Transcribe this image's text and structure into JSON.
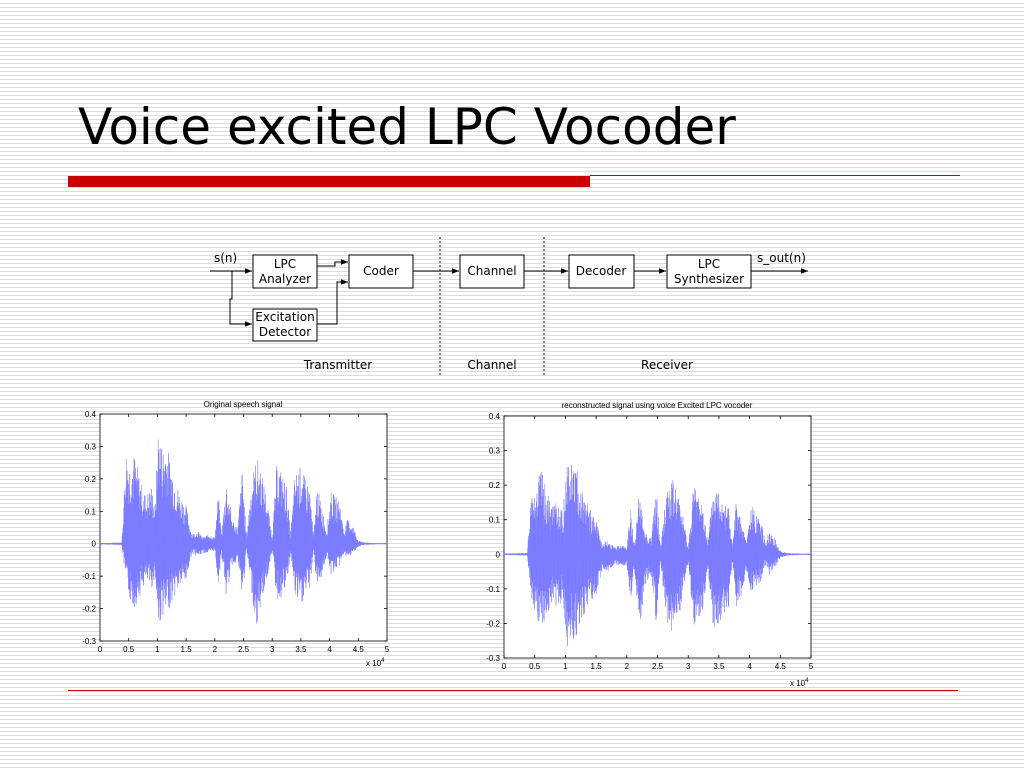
{
  "slide": {
    "title": "Voice excited LPC Vocoder",
    "accent_color": "#cc0000"
  },
  "diagram": {
    "input_label": "s(n)",
    "output_label": "s_out(n)",
    "blocks": {
      "lpc_analyzer": [
        "LPC",
        "Analyzer"
      ],
      "excitation_detector": [
        "Excitation",
        "Detector"
      ],
      "coder": "Coder",
      "channel": "Channel",
      "decoder": "Decoder",
      "lpc_synthesizer": [
        "LPC",
        "Synthesizer"
      ]
    },
    "sections": {
      "transmitter": "Transmitter",
      "channel": "Channel",
      "receiver": "Receiver"
    }
  },
  "chart_data": [
    {
      "type": "line",
      "title": "Original speech signal",
      "xlim": [
        0,
        50000
      ],
      "ylim": [
        -0.3,
        0.4
      ],
      "x_ticks": [
        "0",
        "0.5",
        "1",
        "1.5",
        "2",
        "2.5",
        "3",
        "3.5",
        "4",
        "4.5",
        "5"
      ],
      "y_ticks": [
        "0.4",
        "0.3",
        "0.2",
        "0.1",
        "0",
        "-0.1",
        "-0.2",
        "-0.3"
      ],
      "x_multiplier": "x 10",
      "x_multiplier_exp": "4",
      "series_color": "#7b7bff",
      "envelope": {
        "x": [
          0,
          3800,
          4500,
          5200,
          6000,
          7000,
          8000,
          9000,
          9600,
          10200,
          10800,
          11500,
          12500,
          13200,
          14000,
          15000,
          16000,
          17000,
          18000,
          19000,
          20000,
          20600,
          21200,
          22000,
          23000,
          24000,
          24800,
          25500,
          26500,
          27300,
          28000,
          29000,
          30000,
          30800,
          31500,
          32500,
          33200,
          34000,
          35000,
          35800,
          36600,
          37200,
          37800,
          38600,
          39500,
          40200,
          41000,
          41800,
          42500,
          43200,
          44000,
          45000,
          46000,
          48000,
          50000
        ],
        "max": [
          0.002,
          0.004,
          0.3,
          0.25,
          0.28,
          0.2,
          0.15,
          0.18,
          0.12,
          0.38,
          0.3,
          0.32,
          0.24,
          0.2,
          0.15,
          0.12,
          0.03,
          0.04,
          0.02,
          0.03,
          0.02,
          0.16,
          0.03,
          0.2,
          0.08,
          0.05,
          0.24,
          0.02,
          0.21,
          0.27,
          0.24,
          0.15,
          0.02,
          0.25,
          0.23,
          0.18,
          0.03,
          0.22,
          0.24,
          0.2,
          0.17,
          0.02,
          0.18,
          0.12,
          0.04,
          0.16,
          0.15,
          0.13,
          0.04,
          0.08,
          0.06,
          0.01,
          0.004,
          0.002,
          0.002
        ],
        "min": [
          -0.002,
          -0.004,
          -0.12,
          -0.18,
          -0.2,
          -0.16,
          -0.12,
          -0.14,
          -0.1,
          -0.27,
          -0.22,
          -0.23,
          -0.18,
          -0.16,
          -0.13,
          -0.12,
          -0.03,
          -0.04,
          -0.03,
          -0.03,
          -0.02,
          -0.13,
          -0.03,
          -0.17,
          -0.07,
          -0.05,
          -0.18,
          -0.02,
          -0.16,
          -0.27,
          -0.19,
          -0.12,
          -0.02,
          -0.18,
          -0.17,
          -0.14,
          -0.03,
          -0.17,
          -0.2,
          -0.16,
          -0.14,
          -0.02,
          -0.14,
          -0.1,
          -0.04,
          -0.1,
          -0.08,
          -0.07,
          -0.03,
          -0.05,
          -0.03,
          -0.01,
          -0.004,
          -0.002,
          -0.002
        ]
      }
    },
    {
      "type": "line",
      "title": "reconstructed signal using voice Excited LPC vocoder",
      "xlim": [
        0,
        50000
      ],
      "ylim": [
        -0.3,
        0.4
      ],
      "x_ticks": [
        "0",
        "0.5",
        "1",
        "1.5",
        "2",
        "2.5",
        "3",
        "3.5",
        "4",
        "4.5",
        "5"
      ],
      "y_ticks": [
        "0.4",
        "0.3",
        "0.2",
        "0.1",
        "0",
        "-0.1",
        "-0.2",
        "-0.3"
      ],
      "x_multiplier": "x 10",
      "x_multiplier_exp": "4",
      "series_color": "#7b7bff",
      "envelope": {
        "x": [
          0,
          3800,
          4500,
          5200,
          6000,
          7000,
          8000,
          9000,
          9600,
          10200,
          10800,
          11500,
          12500,
          13200,
          14000,
          15000,
          16000,
          17000,
          18000,
          19000,
          20000,
          20600,
          21200,
          22000,
          23000,
          24000,
          24800,
          25500,
          26500,
          27300,
          28000,
          29000,
          30000,
          30800,
          31500,
          32500,
          33200,
          34000,
          35000,
          35800,
          36600,
          37200,
          37800,
          38600,
          39500,
          40200,
          41000,
          41800,
          42500,
          43200,
          44000,
          45000,
          46000,
          48000,
          50000
        ],
        "max": [
          0.002,
          0.004,
          0.22,
          0.2,
          0.25,
          0.18,
          0.14,
          0.16,
          0.11,
          0.3,
          0.26,
          0.28,
          0.2,
          0.18,
          0.13,
          0.1,
          0.03,
          0.04,
          0.02,
          0.03,
          0.02,
          0.14,
          0.03,
          0.18,
          0.07,
          0.05,
          0.2,
          0.02,
          0.2,
          0.22,
          0.2,
          0.13,
          0.02,
          0.2,
          0.19,
          0.15,
          0.03,
          0.19,
          0.2,
          0.17,
          0.15,
          0.02,
          0.15,
          0.1,
          0.04,
          0.14,
          0.13,
          0.11,
          0.04,
          0.07,
          0.05,
          0.01,
          0.004,
          0.002,
          0.002
        ],
        "min": [
          -0.002,
          -0.004,
          -0.16,
          -0.2,
          -0.23,
          -0.18,
          -0.14,
          -0.16,
          -0.12,
          -0.28,
          -0.24,
          -0.25,
          -0.2,
          -0.17,
          -0.14,
          -0.13,
          -0.04,
          -0.05,
          -0.03,
          -0.04,
          -0.03,
          -0.15,
          -0.04,
          -0.22,
          -0.09,
          -0.06,
          -0.21,
          -0.02,
          -0.2,
          -0.24,
          -0.21,
          -0.14,
          -0.02,
          -0.22,
          -0.2,
          -0.16,
          -0.03,
          -0.21,
          -0.22,
          -0.18,
          -0.16,
          -0.02,
          -0.16,
          -0.12,
          -0.05,
          -0.11,
          -0.09,
          -0.08,
          -0.03,
          -0.06,
          -0.04,
          -0.01,
          -0.004,
          -0.002,
          -0.002
        ]
      }
    }
  ]
}
